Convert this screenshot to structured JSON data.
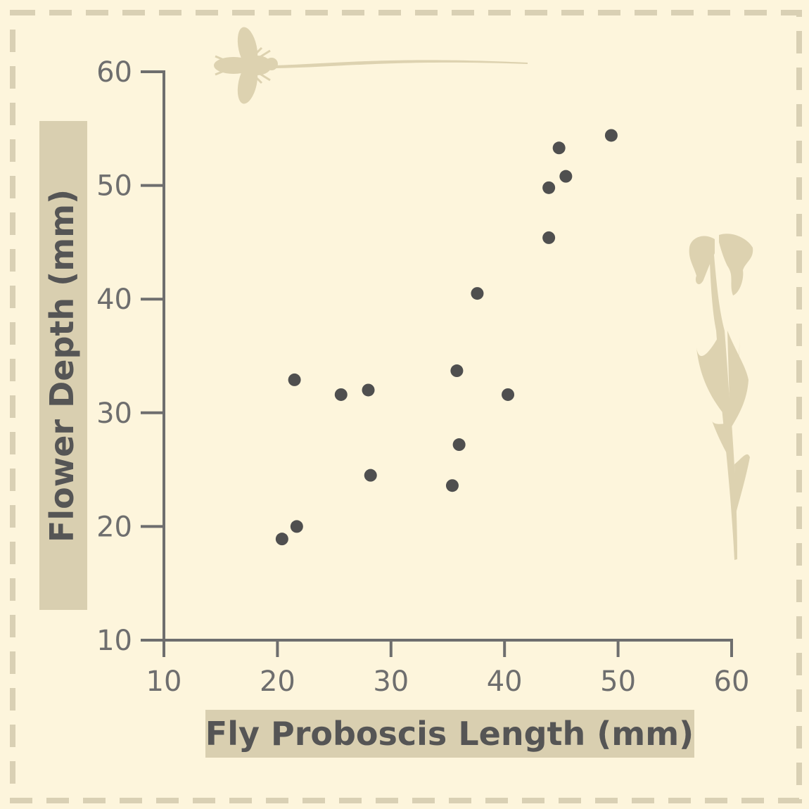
{
  "colors": {
    "background": "#fdf5dc",
    "frame_dash": "#d9d0b4",
    "label_band": "#d9cfb0",
    "axis": "#6e6e6e",
    "point": "#4f4f4f",
    "silhouette": "#ddd2b0"
  },
  "decorations": [
    "fly-silhouette-icon",
    "flower-silhouette-icon"
  ],
  "chart_data": {
    "type": "scatter",
    "title": "",
    "xlabel": "Fly Proboscis Length (mm)",
    "ylabel": "Flower Depth (mm)",
    "xlim": [
      10,
      60
    ],
    "ylim": [
      10,
      60
    ],
    "xticks": [
      "10",
      "20",
      "30",
      "40",
      "50",
      "60"
    ],
    "yticks": [
      "10",
      "20",
      "30",
      "40",
      "50",
      "60"
    ],
    "grid": false,
    "legend": "none",
    "series": [
      {
        "points": [
          {
            "x": 20.4,
            "y": 18.9
          },
          {
            "x": 21.7,
            "y": 20.0
          },
          {
            "x": 21.5,
            "y": 32.9
          },
          {
            "x": 25.6,
            "y": 31.6
          },
          {
            "x": 28.0,
            "y": 32.0
          },
          {
            "x": 28.2,
            "y": 24.5
          },
          {
            "x": 35.4,
            "y": 23.6
          },
          {
            "x": 36.0,
            "y": 27.2
          },
          {
            "x": 35.8,
            "y": 33.7
          },
          {
            "x": 37.6,
            "y": 40.5
          },
          {
            "x": 40.3,
            "y": 31.6
          },
          {
            "x": 43.9,
            "y": 45.4
          },
          {
            "x": 43.9,
            "y": 49.8
          },
          {
            "x": 44.8,
            "y": 53.3
          },
          {
            "x": 45.4,
            "y": 50.8
          },
          {
            "x": 49.4,
            "y": 54.4
          }
        ]
      }
    ]
  }
}
